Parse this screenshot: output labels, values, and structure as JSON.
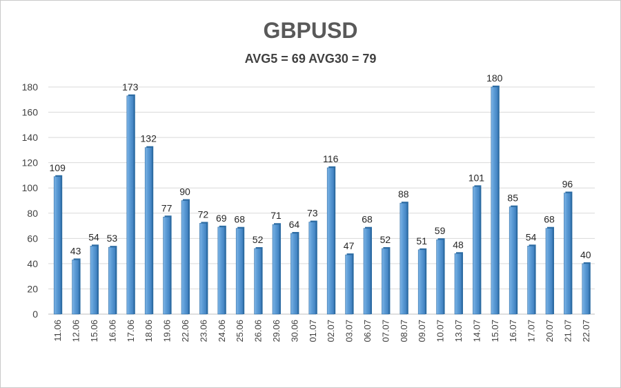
{
  "chart_data": {
    "type": "bar",
    "title": "GBPUSD",
    "subtitle": "AVG5 = 69 AVG30 = 79",
    "xlabel": "",
    "ylabel": "",
    "categories": [
      "11.06",
      "12.06",
      "15.06",
      "16.06",
      "17.06",
      "18.06",
      "19.06",
      "22.06",
      "23.06",
      "24.06",
      "25.06",
      "26.06",
      "29.06",
      "30.06",
      "01.07",
      "02.07",
      "03.07",
      "06.07",
      "07.07",
      "08.07",
      "09.07",
      "10.07",
      "13.07",
      "14.07",
      "15.07",
      "16.07",
      "17.07",
      "20.07",
      "21.07",
      "22.07"
    ],
    "values": [
      109,
      43,
      54,
      53,
      173,
      132,
      77,
      90,
      72,
      69,
      68,
      52,
      71,
      64,
      73,
      116,
      47,
      68,
      52,
      88,
      51,
      59,
      48,
      101,
      180,
      85,
      54,
      68,
      96,
      40
    ],
    "ylim": [
      0,
      180
    ],
    "yticks": [
      0,
      20,
      40,
      60,
      80,
      100,
      120,
      140,
      160,
      180
    ],
    "grid": true,
    "legend": "none",
    "bar_color": "#5b9bd5",
    "bar_edge_color": "#2e6da4",
    "data_labels": true
  }
}
